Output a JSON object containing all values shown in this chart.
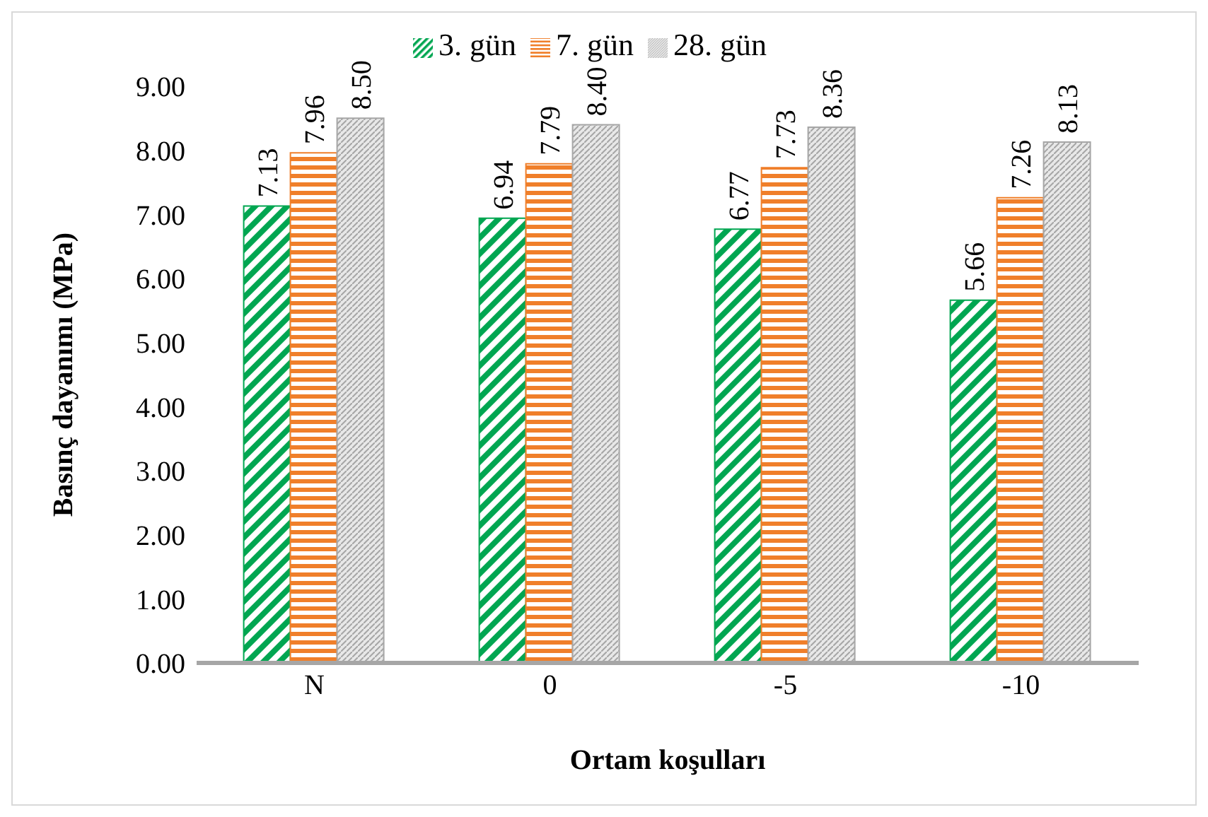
{
  "chart_data": {
    "type": "bar",
    "xlabel": "Ortam koşulları",
    "ylabel": "Basınç dayanımı (MPa)",
    "categories": [
      "N",
      "0",
      "-5",
      "-10"
    ],
    "series": [
      {
        "name": "3. gün",
        "color": "#00a651",
        "values": [
          7.13,
          6.94,
          6.77,
          5.66
        ],
        "value_labels": [
          "7.13",
          "6.94",
          "6.77",
          "5.66"
        ]
      },
      {
        "name": "7. gün",
        "color": "#f07f2a",
        "values": [
          7.96,
          7.79,
          7.73,
          7.26
        ],
        "value_labels": [
          "7.96",
          "7.79",
          "7.73",
          "7.26"
        ]
      },
      {
        "name": "28. gün",
        "color": "#a6a6a6",
        "values": [
          8.5,
          8.4,
          8.36,
          8.13
        ],
        "value_labels": [
          "8.50",
          "8.40",
          "8.36",
          "8.13"
        ]
      }
    ],
    "ylim": [
      0,
      9
    ],
    "yticks": [
      {
        "value": 0,
        "label": "0.00"
      },
      {
        "value": 1,
        "label": "1.00"
      },
      {
        "value": 2,
        "label": "2.00"
      },
      {
        "value": 3,
        "label": "3.00"
      },
      {
        "value": 4,
        "label": "4.00"
      },
      {
        "value": 5,
        "label": "5.00"
      },
      {
        "value": 6,
        "label": "6.00"
      },
      {
        "value": 7,
        "label": "7.00"
      },
      {
        "value": 8,
        "label": "8.00"
      },
      {
        "value": 9,
        "label": "9.00"
      }
    ],
    "grid": false,
    "legend": "top"
  }
}
